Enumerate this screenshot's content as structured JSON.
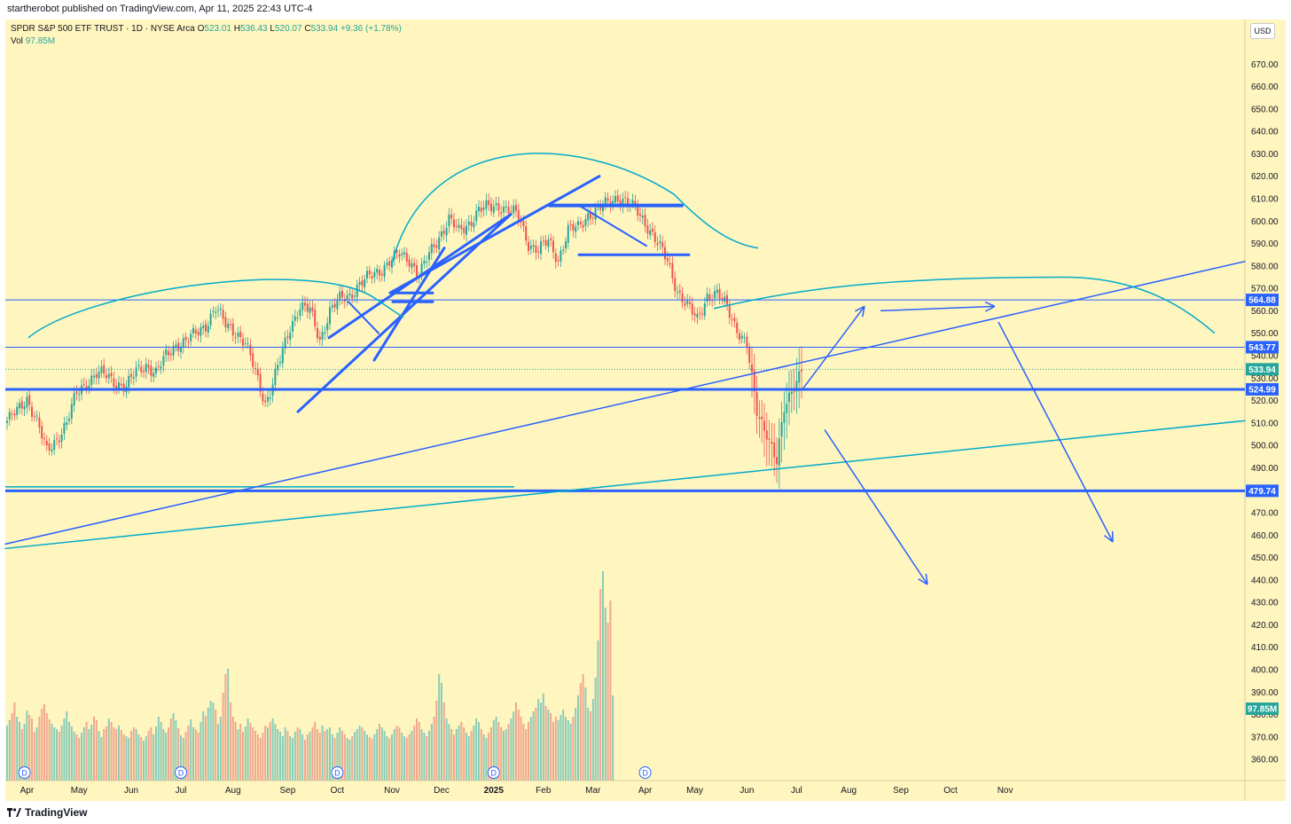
{
  "publisher_line": "startherobot published on TradingView.com, Apr 11, 2025 22:43 UTC-4",
  "legend": {
    "symbol": "SPDR S&P 500 ETF TRUST · 1D · NYSE Arca",
    "open_label": "O",
    "open": "523.01",
    "high_label": "H",
    "high": "536.43",
    "low_label": "L",
    "low": "520.07",
    "close_label": "C",
    "close": "533.94",
    "change": "+9.36 (+1.78%)",
    "vol_label": "Vol",
    "vol_value": "97.85M"
  },
  "currency": "USD",
  "footer_brand": "TradingView",
  "colors": {
    "background": "#fff5bf",
    "up": "#26a69a",
    "down": "#ef5350",
    "drawing_blue": "#2962ff",
    "drawing_cyan": "#00aacc",
    "axis_text": "#131722"
  },
  "chart_data": {
    "type": "candlestick",
    "symbol": "SPY",
    "interval": "1D",
    "ylim": [
      355,
      683
    ],
    "y_ticks": [
      360,
      370,
      380,
      390,
      400,
      410,
      420,
      430,
      440,
      450,
      460,
      470,
      480,
      490,
      500,
      510,
      520,
      530,
      540,
      550,
      560,
      570,
      580,
      590,
      600,
      610,
      620,
      630,
      640,
      650,
      660,
      670
    ],
    "x_labels": [
      "Apr",
      "May",
      "Jun",
      "Jul",
      "Aug",
      "Sep",
      "Oct",
      "Nov",
      "Dec",
      "2025",
      "Feb",
      "Mar",
      "Apr",
      "May",
      "Jun",
      "Jul",
      "Aug",
      "Sep",
      "Oct",
      "Nov"
    ],
    "x_label_index": [
      8,
      29,
      50,
      70,
      91,
      113,
      133,
      155,
      175,
      196,
      216,
      236,
      257,
      277,
      298,
      318,
      339,
      360,
      380,
      402
    ],
    "dividend_markers_index": [
      7,
      70,
      133,
      196,
      257
    ],
    "dividend_label": "D",
    "price_path": [
      [
        0,
        511
      ],
      [
        4,
        515
      ],
      [
        8,
        521
      ],
      [
        12,
        511
      ],
      [
        16,
        497
      ],
      [
        20,
        503
      ],
      [
        24,
        510
      ],
      [
        28,
        523
      ],
      [
        32,
        528
      ],
      [
        36,
        532
      ],
      [
        40,
        531
      ],
      [
        44,
        528
      ],
      [
        48,
        526
      ],
      [
        52,
        533
      ],
      [
        56,
        536
      ],
      [
        60,
        532
      ],
      [
        64,
        540
      ],
      [
        68,
        545
      ],
      [
        72,
        546
      ],
      [
        76,
        550
      ],
      [
        80,
        554
      ],
      [
        84,
        561
      ],
      [
        88,
        554
      ],
      [
        92,
        551
      ],
      [
        96,
        545
      ],
      [
        100,
        533
      ],
      [
        104,
        519
      ],
      [
        106,
        524
      ],
      [
        110,
        538
      ],
      [
        114,
        553
      ],
      [
        118,
        562
      ],
      [
        122,
        560
      ],
      [
        126,
        547
      ],
      [
        130,
        560
      ],
      [
        134,
        565
      ],
      [
        138,
        567
      ],
      [
        142,
        572
      ],
      [
        146,
        575
      ],
      [
        150,
        578
      ],
      [
        154,
        582
      ],
      [
        158,
        585
      ],
      [
        162,
        583
      ],
      [
        166,
        576
      ],
      [
        170,
        585
      ],
      [
        174,
        593
      ],
      [
        178,
        601
      ],
      [
        182,
        595
      ],
      [
        186,
        599
      ],
      [
        190,
        605
      ],
      [
        194,
        606
      ],
      [
        198,
        607
      ],
      [
        202,
        605
      ],
      [
        206,
        602
      ],
      [
        210,
        590
      ],
      [
        214,
        587
      ],
      [
        218,
        591
      ],
      [
        222,
        583
      ],
      [
        226,
        596
      ],
      [
        230,
        597
      ],
      [
        234,
        603
      ],
      [
        238,
        605
      ],
      [
        242,
        608
      ],
      [
        246,
        611
      ],
      [
        250,
        608
      ],
      [
        254,
        604
      ],
      [
        258,
        598
      ],
      [
        262,
        590
      ],
      [
        266,
        582
      ],
      [
        270,
        569
      ],
      [
        274,
        562
      ],
      [
        278,
        556
      ],
      [
        282,
        567
      ],
      [
        286,
        567
      ],
      [
        290,
        562
      ],
      [
        294,
        552
      ],
      [
        298,
        544
      ],
      [
        302,
        515
      ],
      [
        306,
        506
      ],
      [
        310,
        492
      ],
      [
        313,
        516
      ],
      [
        316,
        525
      ],
      [
        320,
        534
      ]
    ],
    "volume_M": [
      62,
      68,
      76,
      88,
      72,
      66,
      58,
      64,
      79,
      74,
      70,
      55,
      60,
      72,
      81,
      86,
      76,
      69,
      64,
      60,
      58,
      55,
      62,
      70,
      78,
      66,
      61,
      55,
      52,
      48,
      54,
      60,
      66,
      58,
      63,
      72,
      68,
      56,
      49,
      58,
      61,
      70,
      66,
      60,
      58,
      62,
      57,
      52,
      50,
      48,
      56,
      60,
      58,
      52,
      49,
      45,
      50,
      56,
      60,
      52,
      61,
      72,
      66,
      58,
      54,
      60,
      70,
      76,
      68,
      59,
      51,
      48,
      55,
      62,
      69,
      60,
      58,
      54,
      66,
      78,
      73,
      82,
      90,
      88,
      80,
      64,
      72,
      99,
      120,
      126,
      88,
      72,
      66,
      58,
      64,
      55,
      61,
      70,
      65,
      60,
      56,
      52,
      48,
      54,
      62,
      60,
      66,
      70,
      64,
      58,
      55,
      50,
      60,
      56,
      50,
      48,
      55,
      60,
      58,
      52,
      46,
      52,
      55,
      60,
      66,
      58,
      54,
      62,
      56,
      58,
      60,
      52,
      48,
      54,
      60,
      56,
      52,
      48,
      46,
      50,
      55,
      58,
      62,
      60,
      56,
      52,
      49,
      47,
      52,
      58,
      64,
      60,
      56,
      50,
      48,
      52,
      58,
      62,
      60,
      54,
      50,
      48,
      52,
      56,
      62,
      70,
      66,
      58,
      54,
      50,
      56,
      64,
      72,
      90,
      120,
      110,
      88,
      70,
      64,
      58,
      52,
      58,
      62,
      66,
      60,
      54,
      50,
      56,
      62,
      70,
      66,
      58,
      52,
      48,
      54,
      60,
      68,
      72,
      66,
      60,
      56,
      58,
      64,
      70,
      78,
      88,
      80,
      72,
      64,
      58,
      66,
      72,
      78,
      82,
      92,
      88,
      98,
      84,
      80,
      76,
      66,
      72,
      68,
      74,
      80,
      72,
      68,
      64,
      72,
      82,
      96,
      110,
      120,
      105,
      82,
      78,
      92,
      116,
      158,
      216,
      236,
      195,
      178,
      203,
      96
    ]
  },
  "levels": {
    "l564": "564.88",
    "l543": "543.77",
    "close_tag": "533.94",
    "l524": "524.99",
    "l479": "479.74",
    "vol_tag": "97.85M"
  }
}
